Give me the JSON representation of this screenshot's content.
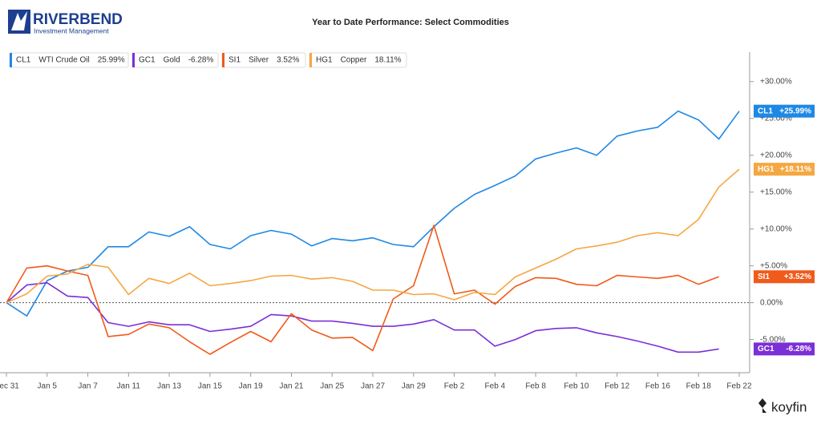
{
  "branding": {
    "logo": "RIVERBEND",
    "logo_subtitle": "Investment Management",
    "footer": "koyfin"
  },
  "chart_data": {
    "type": "line",
    "title": "Year to Date Performance: Select Commodities",
    "categories": [
      "Dec 31",
      null,
      "Jan 5",
      null,
      "Jan 7",
      null,
      "Jan 11",
      null,
      "Jan 13",
      null,
      "Jan 15",
      null,
      "Jan 19",
      null,
      "Jan 21",
      null,
      "Jan 25",
      null,
      "Jan 27",
      null,
      "Jan 29",
      null,
      "Feb 2",
      null,
      "Feb 4",
      null,
      "Feb 8",
      null,
      "Feb 10",
      null,
      "Feb 12",
      null,
      "Feb 16",
      null,
      "Feb 18",
      null,
      "Feb 22"
    ],
    "series": [
      {
        "ticker": "CL1",
        "name": "WTI Crude Oil",
        "legend_value": "25.99%",
        "last_label": "+25.99%",
        "color": "#1e88e5",
        "values": [
          0,
          -1.8,
          3.0,
          4.3,
          4.8,
          7.6,
          7.6,
          9.6,
          9.0,
          10.3,
          7.9,
          7.3,
          9.1,
          9.8,
          9.3,
          7.7,
          8.7,
          8.4,
          8.8,
          7.9,
          7.6,
          10.3,
          12.8,
          14.7,
          15.9,
          17.2,
          19.5,
          20.3,
          21.0,
          20.0,
          22.6,
          23.3,
          23.8,
          26.0,
          24.8,
          22.2,
          25.99
        ]
      },
      {
        "ticker": "GC1",
        "name": "Gold",
        "legend_value": "-6.28%",
        "last_label": "-6.28%",
        "color": "#7b2fd6",
        "values": [
          0,
          2.4,
          2.7,
          0.9,
          0.7,
          -2.7,
          -3.2,
          -2.6,
          -3.0,
          -3.0,
          -3.9,
          -3.6,
          -3.2,
          -1.6,
          -1.8,
          -2.5,
          -2.5,
          -2.8,
          -3.2,
          -3.2,
          -2.9,
          -2.3,
          -3.7,
          -3.7,
          -5.9,
          -5.0,
          -3.8,
          -3.5,
          -3.4,
          -4.1,
          -4.6,
          -5.2,
          -5.9,
          -6.7,
          -6.7,
          -6.28,
          null
        ]
      },
      {
        "ticker": "SI1",
        "name": "Silver",
        "legend_value": "3.52%",
        "last_label": "+3.52%",
        "color": "#f05a1a",
        "values": [
          0,
          4.7,
          5.0,
          4.3,
          3.7,
          -4.6,
          -4.3,
          -2.9,
          -3.4,
          -5.3,
          -7.0,
          -5.4,
          -3.9,
          -5.3,
          -1.5,
          -3.7,
          -4.8,
          -4.7,
          -6.5,
          0.5,
          2.3,
          10.5,
          1.2,
          1.7,
          -0.2,
          2.2,
          3.4,
          3.3,
          2.5,
          2.3,
          3.7,
          3.5,
          3.3,
          3.7,
          2.5,
          3.52,
          null
        ]
      },
      {
        "ticker": "HG1",
        "name": "Copper",
        "legend_value": "18.11%",
        "last_label": "+18.11%",
        "color": "#f5a742",
        "values": [
          0,
          1.2,
          3.6,
          3.9,
          5.2,
          4.8,
          1.1,
          3.3,
          2.6,
          4.0,
          2.3,
          2.6,
          3.0,
          3.6,
          3.7,
          3.2,
          3.4,
          2.9,
          1.7,
          1.7,
          1.1,
          1.2,
          0.4,
          1.4,
          1.1,
          3.5,
          4.7,
          5.9,
          7.3,
          7.7,
          8.2,
          9.1,
          9.5,
          9.1,
          11.3,
          15.7,
          18.11
        ]
      }
    ],
    "ylim": [
      -9.5,
      34
    ],
    "yticks": [
      {
        "value": 30,
        "label": "+30.00%"
      },
      {
        "value": 25,
        "label": "+25.00%"
      },
      {
        "value": 20,
        "label": "+20.00%"
      },
      {
        "value": 15,
        "label": "+15.00%"
      },
      {
        "value": 10,
        "label": "+10.00%"
      },
      {
        "value": 5,
        "label": "+5.00%"
      },
      {
        "value": 0,
        "label": "0.00%"
      },
      {
        "value": -5,
        "label": "-5.00%"
      }
    ],
    "zero_line": true
  }
}
